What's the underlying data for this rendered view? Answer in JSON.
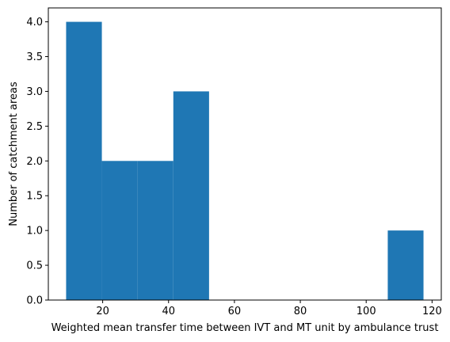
{
  "chart_data": {
    "type": "bar",
    "histogram": true,
    "bins": [
      {
        "start": 8.9,
        "end": 19.75,
        "count": 4
      },
      {
        "start": 19.75,
        "end": 30.6,
        "count": 2
      },
      {
        "start": 30.6,
        "end": 41.45,
        "count": 2
      },
      {
        "start": 41.45,
        "end": 52.3,
        "count": 3
      },
      {
        "start": 52.3,
        "end": 63.15,
        "count": 0
      },
      {
        "start": 63.15,
        "end": 74.0,
        "count": 0
      },
      {
        "start": 74.0,
        "end": 84.85,
        "count": 0
      },
      {
        "start": 84.85,
        "end": 95.7,
        "count": 0
      },
      {
        "start": 95.7,
        "end": 106.55,
        "count": 0
      },
      {
        "start": 106.55,
        "end": 117.4,
        "count": 1
      }
    ],
    "title": "",
    "xlabel": "Weighted mean transfer time between IVT and MT unit by ambulance trust",
    "ylabel": "Number of catchment areas",
    "xlim": [
      3.5,
      122.8
    ],
    "ylim": [
      0,
      4.2
    ],
    "xticks": [
      "20",
      "40",
      "60",
      "80",
      "100",
      "120"
    ],
    "xtick_values": [
      20,
      40,
      60,
      80,
      100,
      120
    ],
    "yticks": [
      "0.0",
      "0.5",
      "1.0",
      "1.5",
      "2.0",
      "2.5",
      "3.0",
      "3.5",
      "4.0"
    ],
    "ytick_values": [
      0,
      0.5,
      1,
      1.5,
      2,
      2.5,
      3,
      3.5,
      4
    ],
    "bar_color": "#1f77b4",
    "grid": false,
    "legend": false
  }
}
